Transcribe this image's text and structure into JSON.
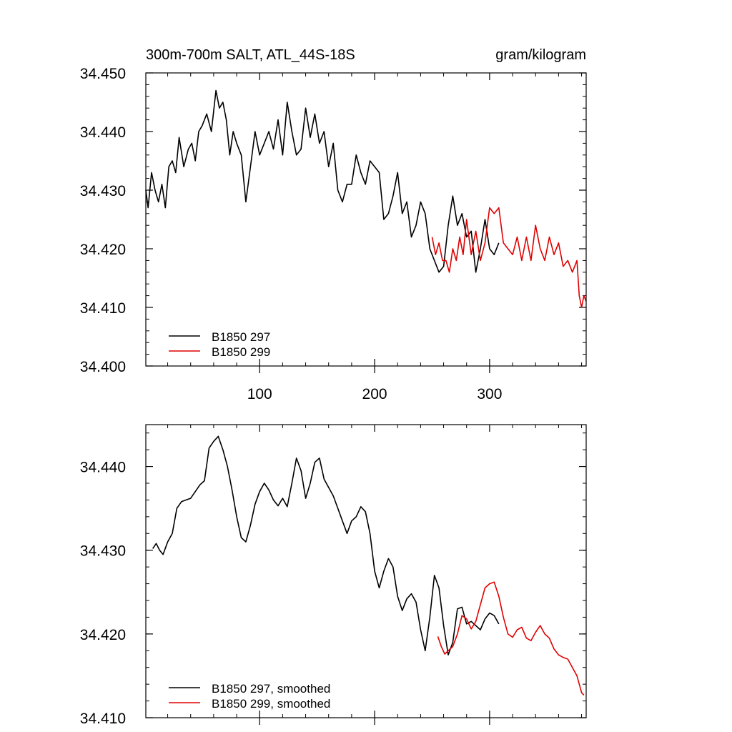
{
  "chart_data": [
    {
      "type": "line",
      "title": "300m-700m SALT, ATL_44S-18S",
      "units": "gram/kilogram",
      "xlabel": "",
      "ylabel": "",
      "xlim": [
        1,
        384
      ],
      "ylim": [
        34.4,
        34.45
      ],
      "xticks": [
        100,
        200,
        300
      ],
      "xtick_labels": [
        "100",
        "200",
        "300"
      ],
      "yticks": [
        34.4,
        34.41,
        34.42,
        34.43,
        34.44,
        34.45
      ],
      "ytick_labels": [
        "34.400",
        "34.410",
        "34.420",
        "34.430",
        "34.440",
        "34.450"
      ],
      "legend_position": "bottom-left",
      "grid": false,
      "series": [
        {
          "name": "B1850 297",
          "color": "#000000",
          "x": [
            1,
            3,
            6,
            9,
            12,
            15,
            18,
            21,
            24,
            27,
            30,
            34,
            38,
            41,
            44,
            47,
            50,
            54,
            58,
            62,
            65,
            68,
            71,
            74,
            77,
            80,
            84,
            88,
            92,
            96,
            100,
            104,
            108,
            112,
            116,
            120,
            124,
            128,
            132,
            136,
            140,
            144,
            148,
            152,
            156,
            160,
            164,
            168,
            172,
            176,
            180,
            184,
            188,
            192,
            196,
            200,
            204,
            208,
            212,
            216,
            220,
            224,
            228,
            232,
            236,
            240,
            244,
            248,
            252,
            256,
            260,
            264,
            268,
            272,
            276,
            280,
            284,
            288,
            292,
            296,
            300,
            304,
            308
          ],
          "y": [
            34.43,
            34.427,
            34.433,
            34.43,
            34.428,
            34.431,
            34.427,
            34.434,
            34.435,
            34.433,
            34.439,
            34.434,
            34.437,
            34.438,
            34.435,
            34.44,
            34.441,
            34.443,
            34.44,
            34.447,
            34.444,
            34.445,
            34.442,
            34.436,
            34.44,
            34.438,
            34.436,
            34.428,
            34.434,
            34.44,
            34.436,
            34.438,
            34.44,
            34.437,
            34.442,
            34.436,
            34.445,
            34.44,
            34.436,
            34.437,
            34.444,
            34.439,
            34.443,
            34.438,
            34.44,
            34.434,
            34.438,
            34.43,
            34.428,
            34.431,
            34.431,
            34.436,
            34.433,
            34.431,
            34.435,
            34.434,
            34.433,
            34.425,
            34.426,
            34.429,
            34.433,
            34.426,
            34.428,
            34.422,
            34.424,
            34.428,
            34.426,
            34.42,
            34.418,
            34.416,
            34.417,
            34.424,
            34.429,
            34.424,
            34.426,
            34.422,
            34.423,
            34.416,
            34.42,
            34.425,
            34.42,
            34.419,
            34.421
          ]
        },
        {
          "name": "B1850 299",
          "color": "#e00000",
          "x": [
            250,
            253,
            256,
            259,
            262,
            265,
            268,
            271,
            274,
            277,
            280,
            284,
            288,
            292,
            296,
            300,
            304,
            308,
            312,
            316,
            320,
            324,
            328,
            332,
            336,
            340,
            344,
            348,
            352,
            356,
            360,
            364,
            368,
            372,
            376,
            378,
            380,
            382,
            384
          ],
          "y": [
            34.422,
            34.419,
            34.421,
            34.418,
            34.418,
            34.416,
            34.42,
            34.418,
            34.422,
            34.419,
            34.425,
            34.419,
            34.423,
            34.418,
            34.421,
            34.427,
            34.426,
            34.427,
            34.421,
            34.42,
            34.419,
            34.422,
            34.418,
            34.422,
            34.418,
            34.424,
            34.42,
            34.418,
            34.422,
            34.419,
            34.421,
            34.417,
            34.418,
            34.416,
            34.418,
            34.412,
            34.41,
            34.412,
            34.411
          ]
        }
      ]
    },
    {
      "type": "line",
      "title": "",
      "xlabel": "",
      "ylabel": "",
      "xlim": [
        1,
        384
      ],
      "ylim": [
        34.41,
        34.445
      ],
      "xticks": [
        100,
        200,
        300
      ],
      "yticks": [
        34.41,
        34.42,
        34.43,
        34.44
      ],
      "ytick_labels": [
        "34.410",
        "34.420",
        "34.430",
        "34.440"
      ],
      "legend_position": "bottom-left",
      "grid": false,
      "series": [
        {
          "name": "B1850 297, smoothed",
          "color": "#000000",
          "x": [
            7,
            10,
            13,
            16,
            20,
            24,
            28,
            32,
            36,
            40,
            44,
            48,
            52,
            56,
            60,
            64,
            68,
            72,
            76,
            80,
            84,
            88,
            92,
            96,
            100,
            104,
            108,
            112,
            116,
            120,
            124,
            128,
            132,
            136,
            140,
            144,
            148,
            152,
            156,
            160,
            164,
            168,
            172,
            176,
            180,
            184,
            188,
            192,
            196,
            200,
            204,
            208,
            212,
            216,
            220,
            224,
            228,
            232,
            236,
            240,
            244,
            248,
            252,
            256,
            260,
            264,
            268,
            272,
            276,
            280,
            284,
            288,
            292,
            296,
            300,
            304,
            308
          ],
          "y": [
            34.4302,
            34.4308,
            34.43,
            34.4295,
            34.431,
            34.432,
            34.435,
            34.4358,
            34.436,
            34.4362,
            34.437,
            34.4378,
            34.4383,
            34.4422,
            34.443,
            34.4436,
            34.442,
            34.44,
            34.4372,
            34.434,
            34.4315,
            34.431,
            34.433,
            34.4355,
            34.437,
            34.438,
            34.4372,
            34.436,
            34.4353,
            34.4362,
            34.4352,
            34.438,
            34.441,
            34.4395,
            34.4362,
            34.438,
            34.4405,
            34.441,
            34.4385,
            34.4375,
            34.4365,
            34.435,
            34.4335,
            34.432,
            34.4335,
            34.434,
            34.4352,
            34.4346,
            34.432,
            34.4275,
            34.4255,
            34.4275,
            34.429,
            34.428,
            34.4245,
            34.4228,
            34.4242,
            34.4248,
            34.4238,
            34.4205,
            34.418,
            34.422,
            34.427,
            34.4255,
            34.421,
            34.4175,
            34.419,
            34.423,
            34.4232,
            34.4212,
            34.4215,
            34.421,
            34.4205,
            34.4218,
            34.4225,
            34.4222,
            34.4212
          ]
        },
        {
          "name": "B1850 299, smoothed",
          "color": "#e00000",
          "x": [
            255,
            258,
            261,
            264,
            268,
            272,
            276,
            280,
            284,
            288,
            292,
            296,
            300,
            304,
            308,
            312,
            316,
            320,
            324,
            328,
            332,
            336,
            340,
            344,
            348,
            352,
            356,
            360,
            364,
            368,
            372,
            376,
            378,
            380,
            382
          ],
          "y": [
            34.4197,
            34.4185,
            34.4176,
            34.418,
            34.4185,
            34.42,
            34.4222,
            34.4218,
            34.4206,
            34.4215,
            34.4235,
            34.4255,
            34.426,
            34.4262,
            34.4245,
            34.422,
            34.42,
            34.4196,
            34.4205,
            34.4208,
            34.4195,
            34.4192,
            34.4202,
            34.421,
            34.42,
            34.4195,
            34.4182,
            34.4175,
            34.4172,
            34.417,
            34.416,
            34.415,
            34.414,
            34.413,
            34.4127
          ]
        }
      ]
    }
  ]
}
